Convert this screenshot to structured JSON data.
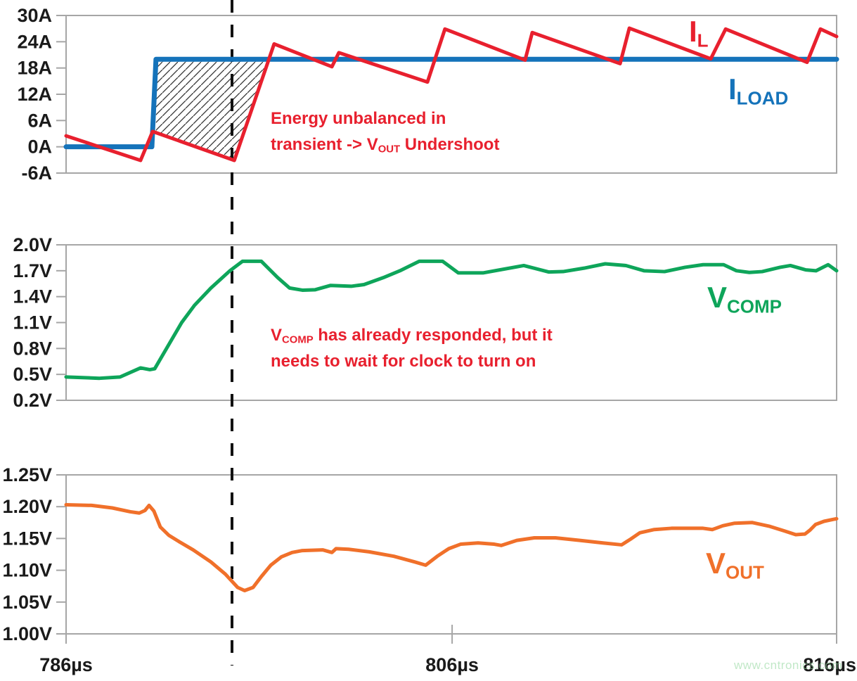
{
  "figure": {
    "watermark": "www.cntronics.com"
  },
  "colors": {
    "red": "#e8202e",
    "blue": "#1573ba",
    "green": "#0ea55a",
    "orange": "#f0702a",
    "border": "#a6a6a6",
    "dash_line": "#111111",
    "tick_text": "#1a1a1a",
    "hatch": "#333333",
    "watermark": "#8fd69b"
  },
  "series_labels": {
    "il": {
      "main": "I",
      "sub": "L"
    },
    "iload": {
      "main": "I",
      "sub": "LOAD"
    },
    "vcomp": {
      "main": "V",
      "sub": "COMP"
    },
    "vout": {
      "main": "V",
      "sub": "OUT"
    }
  },
  "annotations": {
    "energy": {
      "line1": "Energy unbalanced in",
      "line2_pre": "transient -> V",
      "line2_sub": "OUT",
      "line2_post": " Undershoot"
    },
    "vcomp": {
      "line1_pre": "V",
      "line1_sub": "COMP",
      "line1_post": " has already responded, but it",
      "line2": "needs to wait for clock to turn on"
    }
  },
  "chart_data": {
    "type": "line",
    "title": "",
    "grid": false,
    "x": {
      "unit": "µs",
      "min": 786,
      "max": 816,
      "ticks": [
        {
          "label": "786µs",
          "frac": 0.0,
          "align": "center"
        },
        {
          "label": "806µs",
          "frac": 0.501,
          "align": "center"
        },
        {
          "label": "816µs",
          "frac": 1.0,
          "align": "right"
        }
      ]
    },
    "transient_marker_t": 792.46,
    "panels": [
      {
        "id": "current",
        "unit": "A",
        "ymin": -6,
        "ymax": 30,
        "yticks": [
          [
            "30A",
            30
          ],
          [
            "24A",
            24
          ],
          [
            "18A",
            18
          ],
          [
            "12A",
            12
          ],
          [
            "6A",
            6
          ],
          [
            "0A",
            0
          ],
          [
            "-6A",
            -6
          ]
        ]
      },
      {
        "id": "vcomp",
        "unit": "V",
        "ymin": 0.2,
        "ymax": 2.0,
        "yticks": [
          [
            "2.0V",
            2.0
          ],
          [
            "1.7V",
            1.7
          ],
          [
            "1.4V",
            1.4
          ],
          [
            "1.1V",
            1.1
          ],
          [
            "0.8V",
            0.8
          ],
          [
            "0.5V",
            0.5
          ],
          [
            "0.2V",
            0.2
          ]
        ]
      },
      {
        "id": "vout",
        "unit": "V",
        "ymin": 1.0,
        "ymax": 1.25,
        "yticks": [
          [
            "1.25V",
            1.25
          ],
          [
            "1.20V",
            1.2
          ],
          [
            "1.15V",
            1.15
          ],
          [
            "1.10V",
            1.1
          ],
          [
            "1.05V",
            1.05
          ],
          [
            "1.00V",
            1.0
          ]
        ]
      }
    ],
    "series": [
      {
        "id": "iload",
        "name": "I_LOAD",
        "panel": "current",
        "color_key": "blue",
        "width": 7,
        "points": [
          [
            786,
            0
          ],
          [
            789.34,
            0
          ],
          [
            789.5,
            20
          ],
          [
            816,
            20
          ]
        ]
      },
      {
        "id": "il",
        "name": "I_L",
        "panel": "current",
        "color_key": "red",
        "width": 5,
        "points": [
          [
            786,
            2.5
          ],
          [
            788.9,
            -3.1
          ],
          [
            789.37,
            3.5
          ],
          [
            792.55,
            -3.1
          ],
          [
            794.1,
            23.5
          ],
          [
            796.35,
            18.3
          ],
          [
            796.62,
            21.5
          ],
          [
            800.07,
            14.8
          ],
          [
            800.75,
            26.9
          ],
          [
            803.87,
            19.8
          ],
          [
            804.15,
            26.1
          ],
          [
            807.57,
            19.0
          ],
          [
            807.93,
            27.1
          ],
          [
            811.1,
            20.1
          ],
          [
            811.68,
            26.9
          ],
          [
            814.85,
            19.3
          ],
          [
            815.37,
            26.9
          ],
          [
            816,
            25.2
          ]
        ]
      },
      {
        "id": "vcomp_sig",
        "name": "V_COMP",
        "panel": "vcomp",
        "color_key": "green",
        "width": 5,
        "points": [
          [
            786,
            0.47
          ],
          [
            787.3,
            0.455
          ],
          [
            788.1,
            0.47
          ],
          [
            788.9,
            0.575
          ],
          [
            789.26,
            0.555
          ],
          [
            789.45,
            0.565
          ],
          [
            789.91,
            0.8
          ],
          [
            790.5,
            1.1
          ],
          [
            791.0,
            1.3
          ],
          [
            791.64,
            1.5
          ],
          [
            792.38,
            1.7
          ],
          [
            792.87,
            1.81
          ],
          [
            793.6,
            1.81
          ],
          [
            794.24,
            1.62
          ],
          [
            794.7,
            1.5
          ],
          [
            795.2,
            1.475
          ],
          [
            795.7,
            1.48
          ],
          [
            796.3,
            1.53
          ],
          [
            797.1,
            1.52
          ],
          [
            797.6,
            1.54
          ],
          [
            798.35,
            1.62
          ],
          [
            799.0,
            1.7
          ],
          [
            799.75,
            1.81
          ],
          [
            800.66,
            1.81
          ],
          [
            801.27,
            1.675
          ],
          [
            802.23,
            1.675
          ],
          [
            803.82,
            1.76
          ],
          [
            804.8,
            1.685
          ],
          [
            805.35,
            1.69
          ],
          [
            806.17,
            1.73
          ],
          [
            806.99,
            1.78
          ],
          [
            807.8,
            1.76
          ],
          [
            808.5,
            1.7
          ],
          [
            809.3,
            1.69
          ],
          [
            810.1,
            1.74
          ],
          [
            810.8,
            1.77
          ],
          [
            811.6,
            1.77
          ],
          [
            812.1,
            1.7
          ],
          [
            812.6,
            1.68
          ],
          [
            813.1,
            1.69
          ],
          [
            813.8,
            1.74
          ],
          [
            814.2,
            1.76
          ],
          [
            814.8,
            1.71
          ],
          [
            815.2,
            1.7
          ],
          [
            815.67,
            1.77
          ],
          [
            816,
            1.7
          ]
        ]
      },
      {
        "id": "vout_sig",
        "name": "V_OUT",
        "panel": "vout",
        "color_key": "orange",
        "width": 5,
        "points": [
          [
            786,
            1.203
          ],
          [
            787.0,
            1.202
          ],
          [
            787.8,
            1.198
          ],
          [
            788.5,
            1.192
          ],
          [
            788.85,
            1.19
          ],
          [
            789.07,
            1.194
          ],
          [
            789.23,
            1.202
          ],
          [
            789.42,
            1.193
          ],
          [
            789.67,
            1.168
          ],
          [
            790.0,
            1.155
          ],
          [
            790.4,
            1.145
          ],
          [
            790.95,
            1.132
          ],
          [
            791.64,
            1.113
          ],
          [
            792.2,
            1.094
          ],
          [
            792.68,
            1.073
          ],
          [
            792.95,
            1.068
          ],
          [
            793.28,
            1.073
          ],
          [
            793.6,
            1.09
          ],
          [
            793.97,
            1.108
          ],
          [
            794.38,
            1.121
          ],
          [
            794.8,
            1.128
          ],
          [
            795.2,
            1.131
          ],
          [
            796.0,
            1.132
          ],
          [
            796.35,
            1.128
          ],
          [
            796.51,
            1.134
          ],
          [
            797.0,
            1.133
          ],
          [
            797.8,
            1.129
          ],
          [
            798.76,
            1.122
          ],
          [
            799.58,
            1.113
          ],
          [
            800.0,
            1.108
          ],
          [
            800.45,
            1.122
          ],
          [
            800.9,
            1.134
          ],
          [
            801.36,
            1.141
          ],
          [
            802.04,
            1.143
          ],
          [
            802.67,
            1.141
          ],
          [
            802.94,
            1.139
          ],
          [
            803.55,
            1.147
          ],
          [
            804.23,
            1.151
          ],
          [
            805.05,
            1.151
          ],
          [
            806.0,
            1.147
          ],
          [
            806.9,
            1.143
          ],
          [
            807.63,
            1.14
          ],
          [
            807.98,
            1.149
          ],
          [
            808.34,
            1.159
          ],
          [
            808.9,
            1.164
          ],
          [
            809.57,
            1.166
          ],
          [
            810.8,
            1.166
          ],
          [
            811.16,
            1.164
          ],
          [
            811.57,
            1.17
          ],
          [
            812.03,
            1.174
          ],
          [
            812.72,
            1.175
          ],
          [
            813.4,
            1.169
          ],
          [
            813.95,
            1.162
          ],
          [
            814.41,
            1.156
          ],
          [
            814.77,
            1.157
          ],
          [
            814.96,
            1.163
          ],
          [
            815.18,
            1.172
          ],
          [
            815.51,
            1.177
          ],
          [
            815.86,
            1.18
          ],
          [
            816,
            1.181
          ]
        ]
      }
    ],
    "undershoot_hatch": {
      "panel": "current",
      "points": [
        [
          789.5,
          20
        ],
        [
          793.89,
          20
        ],
        [
          792.55,
          -3.1
        ],
        [
          789.5,
          3.2
        ]
      ]
    }
  }
}
